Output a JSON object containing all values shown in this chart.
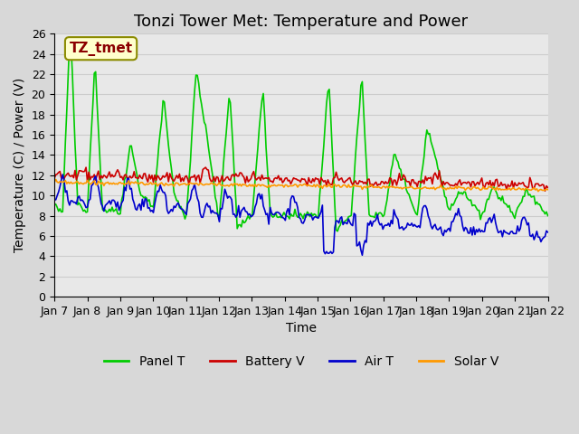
{
  "title": "Tonzi Tower Met: Temperature and Power",
  "xlabel": "Time",
  "ylabel": "Temperature (C) / Power (V)",
  "annotation": "TZ_tmet",
  "annotation_color": "#8B0000",
  "annotation_bg": "#FFFFCC",
  "annotation_border": "#8B8B00",
  "ylim": [
    0,
    26
  ],
  "yticks": [
    0,
    2,
    4,
    6,
    8,
    10,
    12,
    14,
    16,
    18,
    20,
    22,
    24,
    26
  ],
  "xtick_labels": [
    "Jan 7",
    "Jan 8",
    "Jan 9",
    "Jan 10",
    "Jan 11",
    "Jan 12",
    "Jan 13",
    "Jan 14",
    "Jan 15",
    "Jan 16",
    "Jan 17",
    "Jan 18",
    "Jan 19",
    "Jan 20",
    "Jan 21",
    "Jan 22"
  ],
  "grid_color": "#CCCCCC",
  "bg_color": "#E8E8E8",
  "plot_bg_color": "#E8E8E8",
  "series_colors": {
    "panel_t": "#00CC00",
    "battery_v": "#CC0000",
    "air_t": "#0000CC",
    "solar_v": "#FF9900"
  },
  "legend_labels": [
    "Panel T",
    "Battery V",
    "Air T",
    "Solar V"
  ],
  "linewidth": 1.2,
  "title_fontsize": 13,
  "label_fontsize": 10,
  "tick_fontsize": 9,
  "legend_fontsize": 10
}
